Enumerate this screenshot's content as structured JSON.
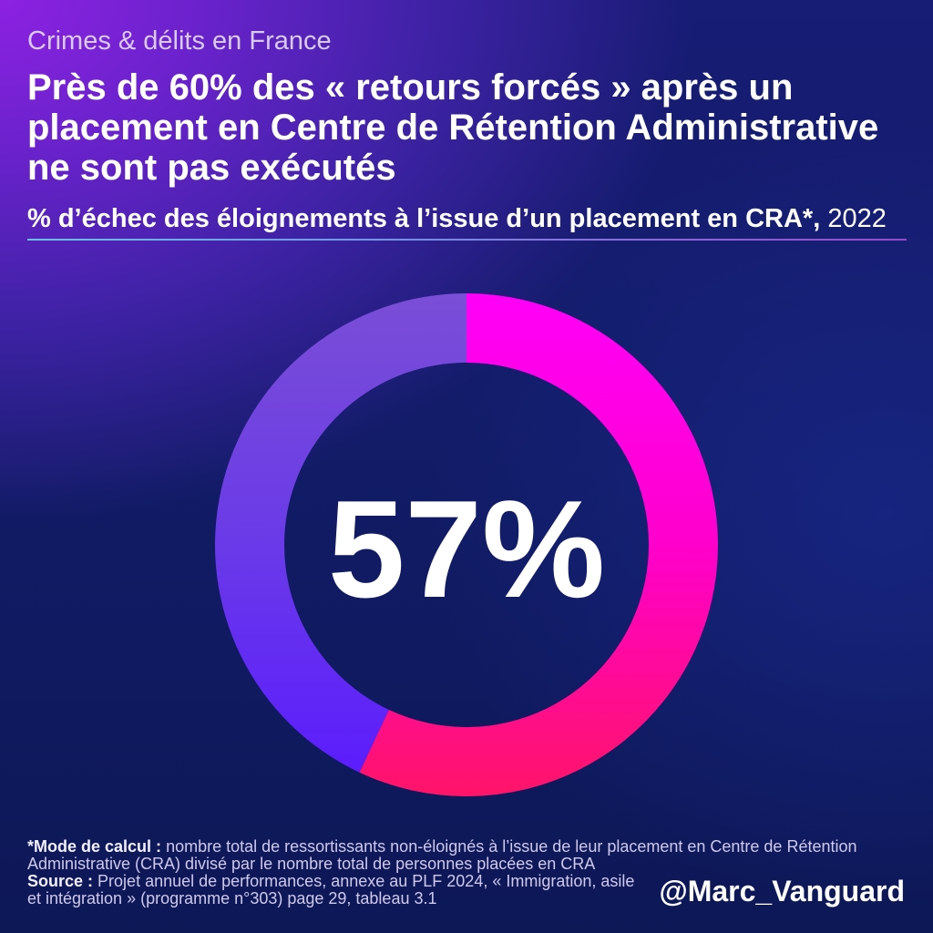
{
  "header": {
    "kicker": "Crimes & délits en France"
  },
  "chart_data": {
    "type": "pie",
    "donut": true,
    "title": [
      "Près de 60% des « retours forcés » après un",
      "placement en Centre de Rétention Administrative",
      "ne sont pas exécutés"
    ],
    "subtitle": "% d’échec des éloignements à l’issue d’un placement en CRA*,",
    "subtitle_year": "2022",
    "values": [
      57,
      43
    ],
    "value_label": "57%",
    "slice_colors": [
      [
        "#ff00f8",
        "#ff00cc",
        "#ff1468"
      ],
      [
        "#7a4ed6",
        "#6a3ae8",
        "#5a1aff"
      ]
    ]
  },
  "footer": {
    "method_label": "*Mode de calcul :",
    "method_lines": [
      "nombre total de ressortissants non-éloignés à l’issue de leur placement en Centre de Rétention",
      "Administrative (CRA) divisé par le nombre total de personnes placées en CRA"
    ],
    "source_label": "Source :",
    "source_lines": [
      "Projet annuel de performances, annexe au PLF 2024, « Immigration, asile",
      "et intégration » (programme n°303) page 29, tableau 3.1"
    ],
    "handle": "@Marc_Vanguard"
  },
  "colors": {
    "title_text": "#ffffff",
    "kicker_text": "#d8cbee",
    "footnote_text": "#cfc9ea"
  }
}
